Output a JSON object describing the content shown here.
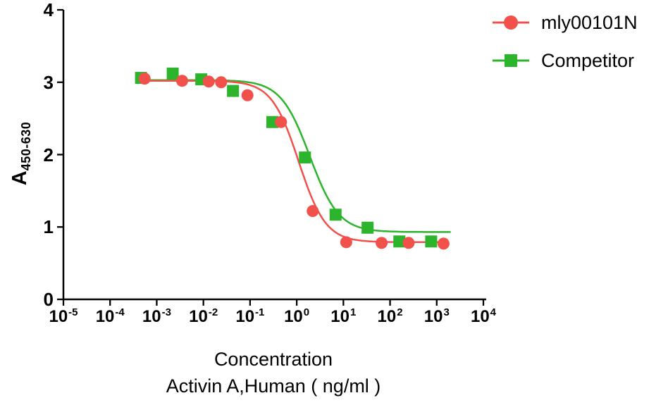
{
  "chart_data": {
    "type": "scatter",
    "subtype": "dose-response-inhibition-curve",
    "title": "",
    "xlabel_line1": "Concentration",
    "xlabel_line2": "Activin A,Human ( ng/ml )",
    "ylabel_main": "A",
    "ylabel_sub": "450-630",
    "x_scale": "log10",
    "x_log_range": [
      -5,
      4
    ],
    "x_tick_base": "10",
    "x_tick_exponents": [
      -5,
      -4,
      -3,
      -2,
      -1,
      0,
      1,
      2,
      3,
      4
    ],
    "ylim": [
      0,
      4
    ],
    "y_ticks": [
      0,
      1,
      2,
      3,
      4
    ],
    "grid": false,
    "legend_position": "top-right",
    "background": "#ffffff",
    "axis_color": "#000000",
    "series": [
      {
        "name": "mly00101N",
        "color": "#f2504b",
        "marker": "circle",
        "points": [
          {
            "x": 0.00055,
            "y": 3.05
          },
          {
            "x": 0.0035,
            "y": 3.02
          },
          {
            "x": 0.013,
            "y": 3.01
          },
          {
            "x": 0.024,
            "y": 3.0
          },
          {
            "x": 0.088,
            "y": 2.82
          },
          {
            "x": 0.46,
            "y": 2.45
          },
          {
            "x": 2.2,
            "y": 1.22
          },
          {
            "x": 11.5,
            "y": 0.79
          },
          {
            "x": 66,
            "y": 0.78
          },
          {
            "x": 250,
            "y": 0.78
          },
          {
            "x": 1400,
            "y": 0.77
          }
        ],
        "curve": {
          "model": "4PL",
          "top": 3.02,
          "bottom": 0.79,
          "ic50": 1.1,
          "hill": 1.5,
          "log_start": -3.3,
          "log_end": 3.2
        }
      },
      {
        "name": "Competitor",
        "color": "#2cb52c",
        "marker": "square",
        "points": [
          {
            "x": 0.00046,
            "y": 3.06
          },
          {
            "x": 0.0022,
            "y": 3.12
          },
          {
            "x": 0.009,
            "y": 3.04
          },
          {
            "x": 0.043,
            "y": 2.88
          },
          {
            "x": 0.3,
            "y": 2.45
          },
          {
            "x": 1.5,
            "y": 1.96
          },
          {
            "x": 6.8,
            "y": 1.17
          },
          {
            "x": 33,
            "y": 0.99
          },
          {
            "x": 158,
            "y": 0.8
          },
          {
            "x": 760,
            "y": 0.8
          }
        ],
        "curve": {
          "model": "4PL",
          "top": 3.03,
          "bottom": 0.93,
          "ic50": 1.9,
          "hill": 1.4,
          "log_start": -3.38,
          "log_end": 3.3
        }
      }
    ]
  }
}
